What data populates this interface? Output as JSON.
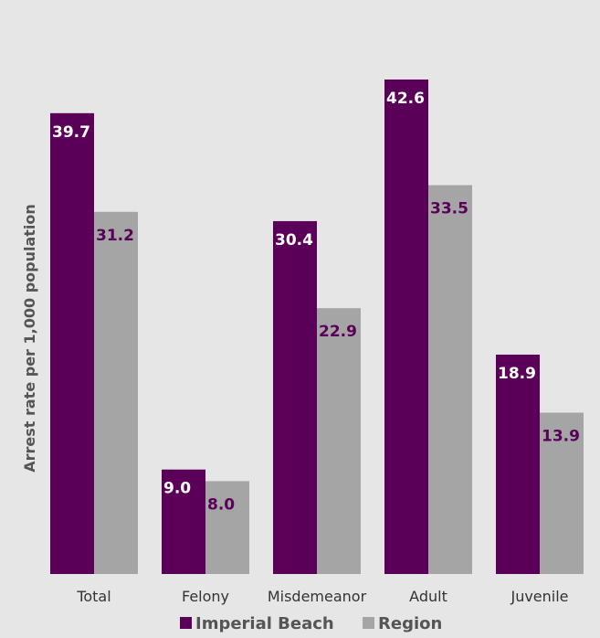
{
  "chart_data": {
    "type": "bar",
    "title": "",
    "xlabel": "",
    "ylabel": "Arrest rate per 1,000 population",
    "categories": [
      "Total",
      "Felony",
      "Misdemeanor",
      "Adult",
      "Juvenile"
    ],
    "series": [
      {
        "name": "Imperial Beach",
        "values": [
          39.7,
          9.0,
          30.4,
          42.6,
          18.9
        ],
        "labels": [
          "39.7",
          "9.0",
          "30.4",
          "42.6",
          "18.9"
        ],
        "color": "#5a0058"
      },
      {
        "name": "Region",
        "values": [
          31.2,
          8.0,
          22.9,
          33.5,
          13.9
        ],
        "labels": [
          "31.2",
          "8.0",
          "22.9",
          "33.5",
          "13.9"
        ],
        "color": "#a5a5a5"
      }
    ],
    "ylim": [
      0,
      42.6
    ],
    "grid": false,
    "legend_position": "bottom",
    "label_colors": {
      "on_primary": "#ffffff",
      "on_secondary": "#5a0058"
    },
    "background": "#e6e6e7"
  }
}
